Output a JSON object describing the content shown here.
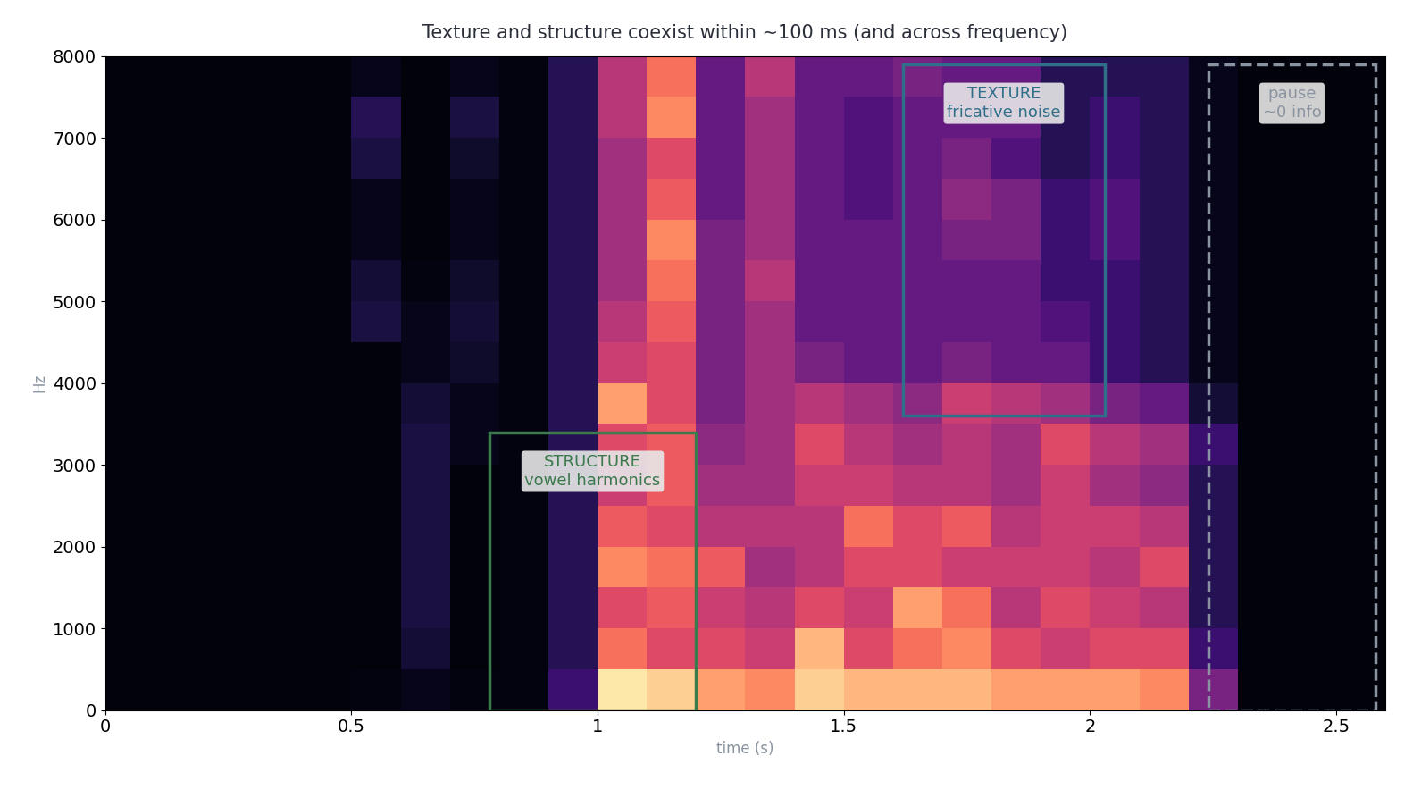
{
  "chart_data": {
    "type": "heatmap",
    "title": "Texture and structure coexist within ~100 ms (and across frequency)",
    "x_label": "time (s)",
    "y_label": "Hz",
    "xlim": [
      0,
      2.6
    ],
    "ylim": [
      0,
      8000
    ],
    "xticks": [
      0,
      0.5,
      1,
      1.5,
      2,
      2.5
    ],
    "yticks": [
      0,
      1000,
      2000,
      3000,
      4000,
      5000,
      6000,
      7000,
      8000
    ],
    "x_edges": [
      0,
      0.1,
      0.2,
      0.3,
      0.4,
      0.5,
      0.6,
      0.7,
      0.8,
      0.9,
      1.0,
      1.1,
      1.2,
      1.3,
      1.4,
      1.5,
      1.6,
      1.7,
      1.8,
      1.9,
      2.0,
      2.1,
      2.2,
      2.3,
      2.4,
      2.5,
      2.6
    ],
    "y_edges": [
      0,
      500,
      1000,
      1500,
      2000,
      2500,
      3000,
      3500,
      4000,
      4500,
      5000,
      5500,
      6000,
      6500,
      7000,
      7500,
      8000
    ],
    "zlim": [
      0,
      1
    ],
    "cells_by_time": [
      [
        0.02,
        0.02,
        0.02,
        0.02,
        0.02,
        0.02,
        0.02,
        0.02,
        0.02,
        0.02,
        0.02,
        0.02,
        0.02,
        0.02,
        0.02,
        0.02
      ],
      [
        0.02,
        0.02,
        0.02,
        0.02,
        0.02,
        0.02,
        0.02,
        0.02,
        0.02,
        0.02,
        0.02,
        0.02,
        0.02,
        0.02,
        0.02,
        0.02
      ],
      [
        0.02,
        0.02,
        0.02,
        0.02,
        0.02,
        0.02,
        0.02,
        0.02,
        0.02,
        0.02,
        0.02,
        0.02,
        0.02,
        0.02,
        0.02,
        0.02
      ],
      [
        0.02,
        0.02,
        0.02,
        0.02,
        0.02,
        0.02,
        0.02,
        0.02,
        0.02,
        0.02,
        0.02,
        0.02,
        0.02,
        0.02,
        0.02,
        0.02
      ],
      [
        0.02,
        0.02,
        0.02,
        0.02,
        0.02,
        0.02,
        0.02,
        0.02,
        0.02,
        0.02,
        0.02,
        0.02,
        0.02,
        0.02,
        0.02,
        0.02
      ],
      [
        0.03,
        0.02,
        0.02,
        0.02,
        0.02,
        0.02,
        0.02,
        0.02,
        0.02,
        0.12,
        0.1,
        0.05,
        0.05,
        0.12,
        0.15,
        0.05
      ],
      [
        0.05,
        0.1,
        0.12,
        0.12,
        0.12,
        0.12,
        0.12,
        0.1,
        0.05,
        0.05,
        0.03,
        0.02,
        0.02,
        0.02,
        0.02,
        0.02
      ],
      [
        0.03,
        0.02,
        0.02,
        0.02,
        0.02,
        0.02,
        0.05,
        0.05,
        0.08,
        0.1,
        0.08,
        0.05,
        0.05,
        0.08,
        0.12,
        0.05
      ],
      [
        0.03,
        0.03,
        0.03,
        0.03,
        0.03,
        0.03,
        0.03,
        0.03,
        0.03,
        0.03,
        0.03,
        0.03,
        0.03,
        0.03,
        0.03,
        0.03
      ],
      [
        0.2,
        0.15,
        0.15,
        0.15,
        0.15,
        0.15,
        0.15,
        0.15,
        0.15,
        0.15,
        0.15,
        0.15,
        0.15,
        0.15,
        0.15,
        0.15
      ],
      [
        0.95,
        0.7,
        0.6,
        0.75,
        0.65,
        0.55,
        0.6,
        0.8,
        0.55,
        0.5,
        0.45,
        0.45,
        0.45,
        0.45,
        0.5,
        0.5
      ],
      [
        0.9,
        0.6,
        0.65,
        0.7,
        0.6,
        0.65,
        0.65,
        0.6,
        0.6,
        0.65,
        0.7,
        0.75,
        0.65,
        0.6,
        0.75,
        0.7
      ],
      [
        0.8,
        0.6,
        0.55,
        0.65,
        0.5,
        0.45,
        0.4,
        0.35,
        0.35,
        0.35,
        0.35,
        0.35,
        0.3,
        0.3,
        0.3,
        0.3
      ],
      [
        0.75,
        0.55,
        0.5,
        0.45,
        0.5,
        0.45,
        0.45,
        0.45,
        0.45,
        0.45,
        0.5,
        0.45,
        0.45,
        0.45,
        0.45,
        0.5
      ],
      [
        0.9,
        0.85,
        0.6,
        0.5,
        0.5,
        0.55,
        0.6,
        0.5,
        0.35,
        0.3,
        0.3,
        0.3,
        0.3,
        0.3,
        0.3,
        0.3
      ],
      [
        0.85,
        0.6,
        0.55,
        0.6,
        0.7,
        0.55,
        0.5,
        0.45,
        0.3,
        0.3,
        0.3,
        0.3,
        0.25,
        0.25,
        0.25,
        0.3
      ],
      [
        0.85,
        0.7,
        0.8,
        0.6,
        0.6,
        0.5,
        0.45,
        0.4,
        0.3,
        0.3,
        0.3,
        0.3,
        0.3,
        0.3,
        0.3,
        0.35
      ],
      [
        0.85,
        0.75,
        0.7,
        0.55,
        0.65,
        0.5,
        0.5,
        0.55,
        0.35,
        0.3,
        0.3,
        0.35,
        0.4,
        0.35,
        0.3,
        0.3
      ],
      [
        0.8,
        0.6,
        0.5,
        0.55,
        0.5,
        0.45,
        0.45,
        0.5,
        0.3,
        0.3,
        0.3,
        0.35,
        0.35,
        0.25,
        0.3,
        0.3
      ],
      [
        0.8,
        0.55,
        0.6,
        0.55,
        0.55,
        0.55,
        0.6,
        0.45,
        0.3,
        0.25,
        0.2,
        0.2,
        0.2,
        0.15,
        0.15,
        0.15
      ],
      [
        0.8,
        0.6,
        0.55,
        0.5,
        0.55,
        0.45,
        0.5,
        0.35,
        0.2,
        0.2,
        0.2,
        0.25,
        0.25,
        0.2,
        0.2,
        0.15
      ],
      [
        0.75,
        0.6,
        0.5,
        0.6,
        0.5,
        0.4,
        0.45,
        0.3,
        0.15,
        0.15,
        0.15,
        0.15,
        0.15,
        0.15,
        0.15,
        0.15
      ],
      [
        0.35,
        0.2,
        0.15,
        0.15,
        0.15,
        0.15,
        0.2,
        0.1,
        0.05,
        0.05,
        0.05,
        0.05,
        0.05,
        0.05,
        0.05,
        0.05
      ],
      [
        0.02,
        0.02,
        0.02,
        0.02,
        0.02,
        0.02,
        0.02,
        0.02,
        0.02,
        0.02,
        0.02,
        0.02,
        0.02,
        0.02,
        0.02,
        0.02
      ],
      [
        0.02,
        0.02,
        0.02,
        0.02,
        0.02,
        0.02,
        0.02,
        0.02,
        0.02,
        0.02,
        0.02,
        0.02,
        0.02,
        0.02,
        0.02,
        0.02
      ],
      [
        0.02,
        0.02,
        0.02,
        0.02,
        0.02,
        0.02,
        0.02,
        0.02,
        0.02,
        0.02,
        0.02,
        0.02,
        0.02,
        0.02,
        0.02,
        0.02
      ]
    ],
    "regions": [
      {
        "text": "STRUCTURE\nvowel harmonics",
        "x": [
          0.78,
          1.2
        ],
        "y": [
          0,
          3400
        ],
        "color": "#3b7a4c",
        "line_style": "solid"
      },
      {
        "text": "TEXTURE\nfricative noise",
        "x": [
          1.62,
          2.03
        ],
        "y": [
          3600,
          7900
        ],
        "color": "#2f6f8a",
        "line_style": "solid"
      },
      {
        "text": "pause\n~0 info",
        "x": [
          2.24,
          2.58
        ],
        "y": [
          0,
          7900
        ],
        "color": "#8a93a0",
        "line_style": "dashed"
      }
    ]
  }
}
